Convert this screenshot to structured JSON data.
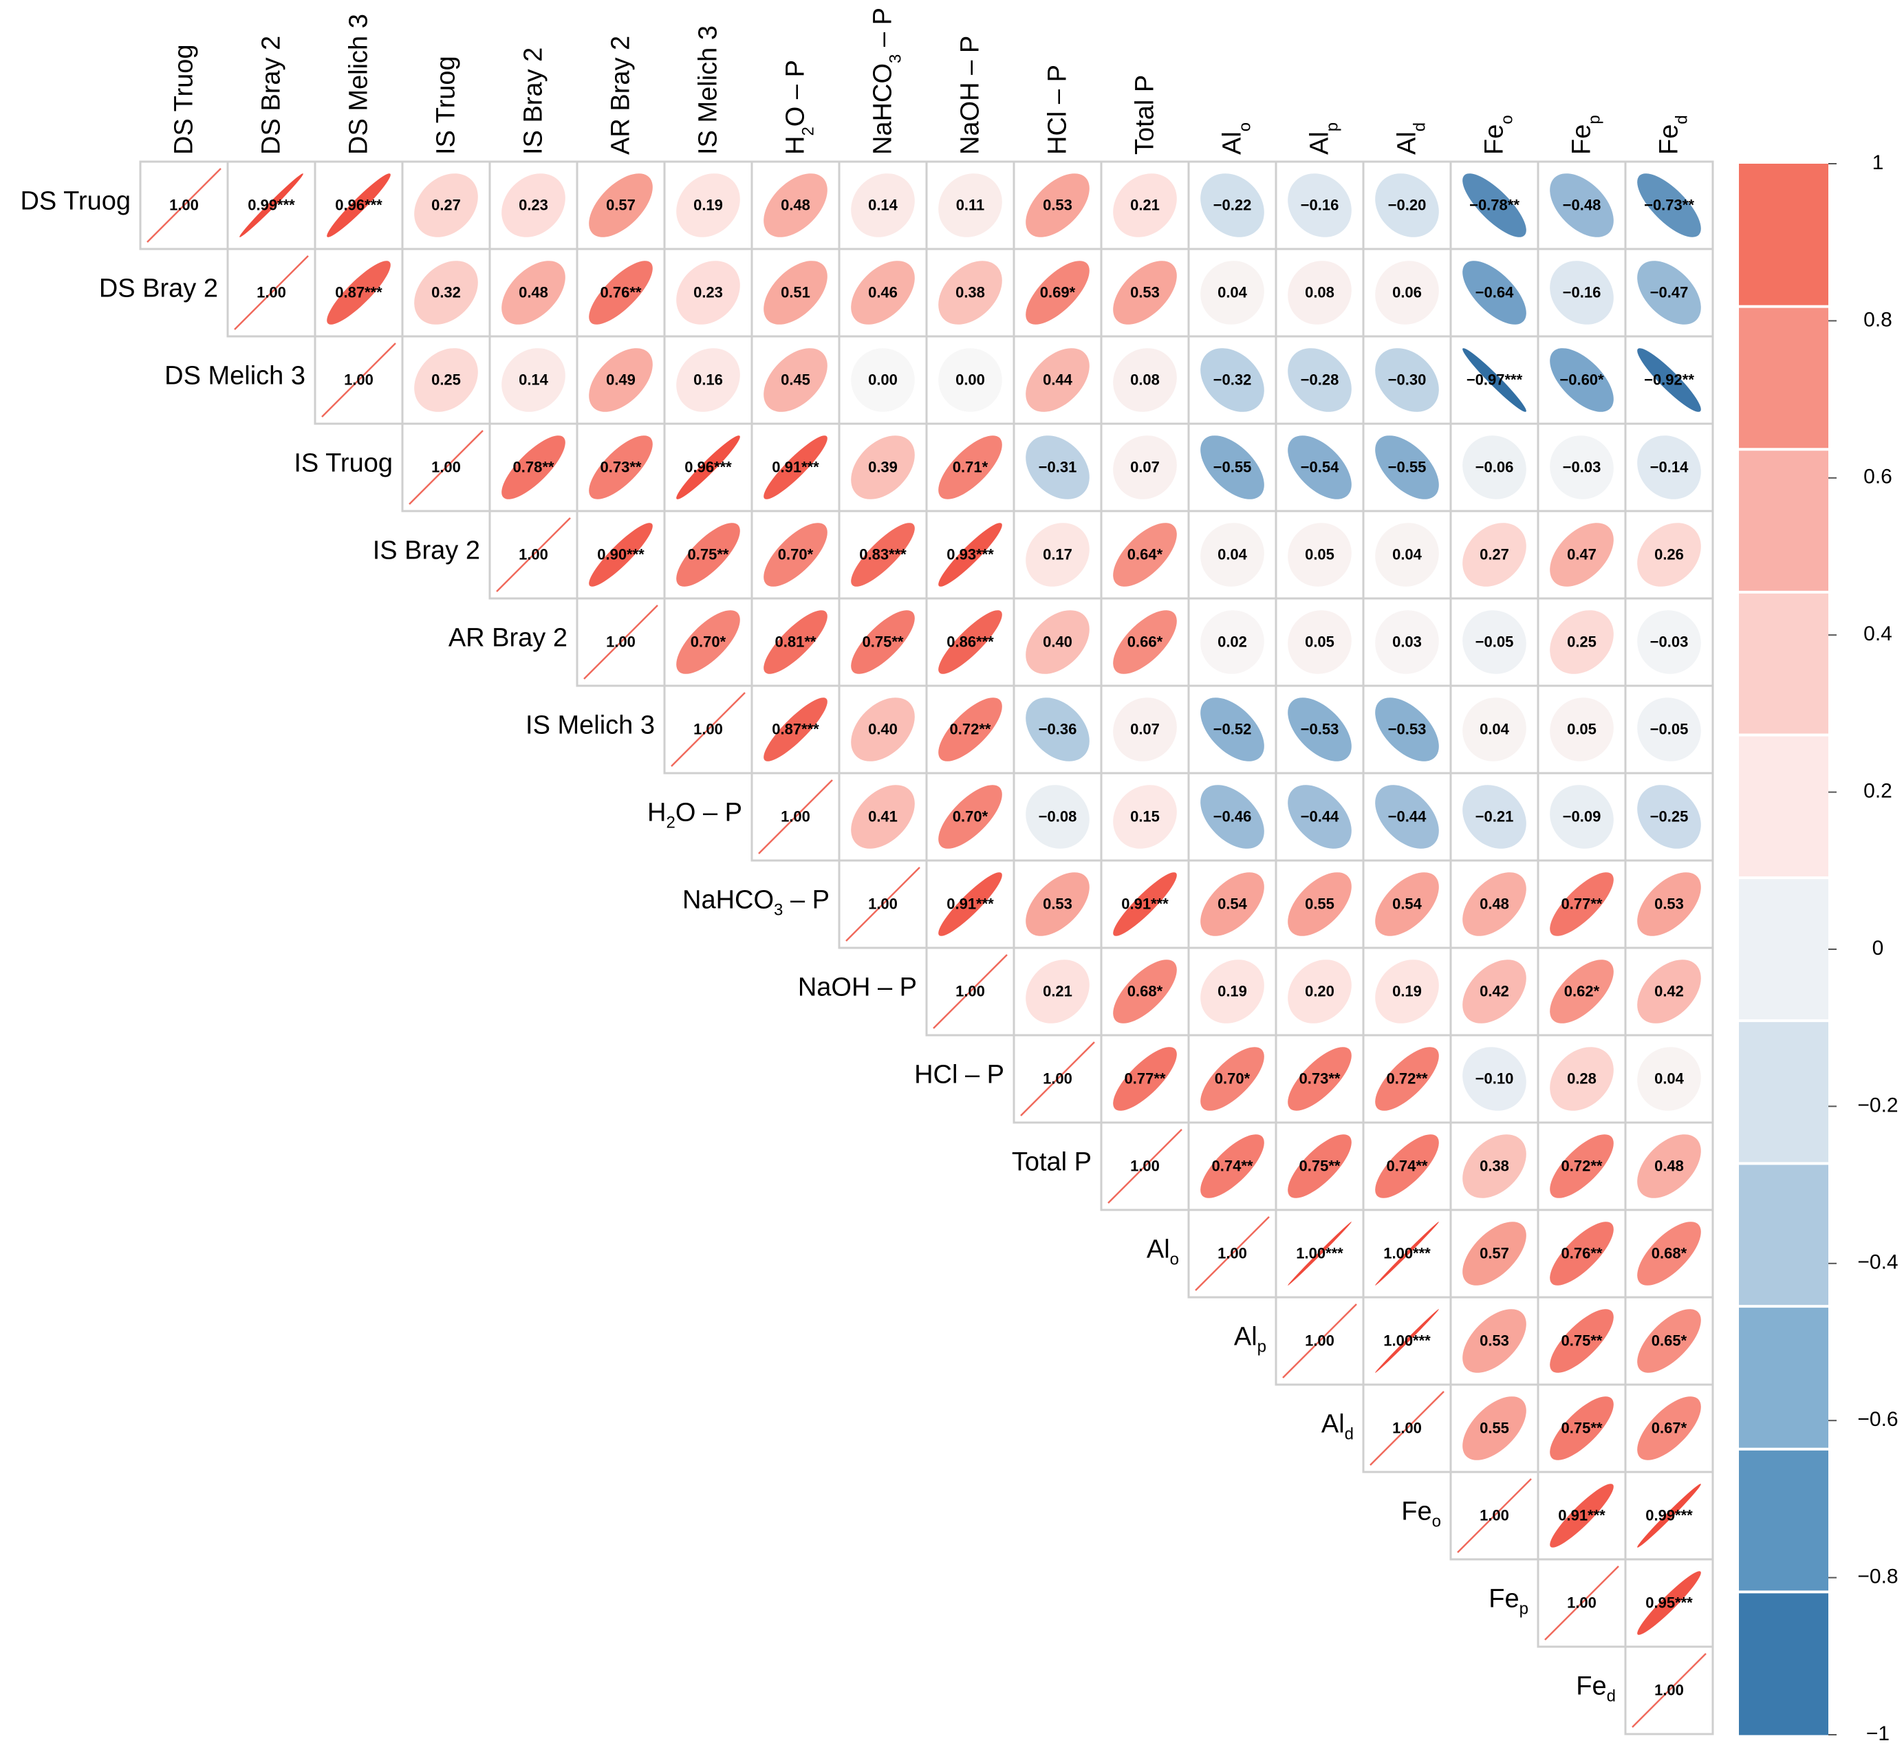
{
  "chart_data": {
    "type": "heatmap",
    "subtype": "correlogram-upper-ellipse",
    "variables": [
      {
        "name": "DS Truog"
      },
      {
        "name": "DS Bray 2"
      },
      {
        "name": "DS Melich 3"
      },
      {
        "name": "IS Truog"
      },
      {
        "name": "IS Bray 2"
      },
      {
        "name": "AR Bray 2"
      },
      {
        "name": "IS Melich 3"
      },
      {
        "name": "H",
        "sub": "2",
        "post": "O – P"
      },
      {
        "name": "NaHCO",
        "sub": "3",
        "post": " – P"
      },
      {
        "name": "NaOH – P"
      },
      {
        "name": "HCl – P"
      },
      {
        "name": "Total P"
      },
      {
        "name": "Al",
        "sub": "o"
      },
      {
        "name": "Al",
        "sub": "p"
      },
      {
        "name": "Al",
        "sub": "d"
      },
      {
        "name": "Fe",
        "sub": "o"
      },
      {
        "name": "Fe",
        "sub": "p"
      },
      {
        "name": "Fe",
        "sub": "d"
      }
    ],
    "cells": [
      [
        "1.00",
        "0.99***",
        "0.96***",
        "0.27",
        "0.23",
        "0.57",
        "0.19",
        "0.48",
        "0.14",
        "0.11",
        "0.53",
        "0.21",
        "−0.22",
        "−0.16",
        "−0.20",
        "−0.78**",
        "−0.48",
        "−0.73**"
      ],
      [
        "",
        "1.00",
        "0.87***",
        "0.32",
        "0.48",
        "0.76**",
        "0.23",
        "0.51",
        "0.46",
        "0.38",
        "0.69*",
        "0.53",
        "0.04",
        "0.08",
        "0.06",
        "−0.64",
        "−0.16",
        "−0.47"
      ],
      [
        "",
        "",
        "1.00",
        "0.25",
        "0.14",
        "0.49",
        "0.16",
        "0.45",
        "0.00",
        "0.00",
        "0.44",
        "0.08",
        "−0.32",
        "−0.28",
        "−0.30",
        "−0.97***",
        "−0.60*",
        "−0.92**"
      ],
      [
        "",
        "",
        "",
        "1.00",
        "0.78**",
        "0.73**",
        "0.96***",
        "0.91***",
        "0.39",
        "0.71*",
        "−0.31",
        "0.07",
        "−0.55",
        "−0.54",
        "−0.55",
        "−0.06",
        "−0.03",
        "−0.14"
      ],
      [
        "",
        "",
        "",
        "",
        "1.00",
        "0.90***",
        "0.75**",
        "0.70*",
        "0.83***",
        "0.93***",
        "0.17",
        "0.64*",
        "0.04",
        "0.05",
        "0.04",
        "0.27",
        "0.47",
        "0.26"
      ],
      [
        "",
        "",
        "",
        "",
        "",
        "1.00",
        "0.70*",
        "0.81**",
        "0.75**",
        "0.86***",
        "0.40",
        "0.66*",
        "0.02",
        "0.05",
        "0.03",
        "−0.05",
        "0.25",
        "−0.03"
      ],
      [
        "",
        "",
        "",
        "",
        "",
        "",
        "1.00",
        "0.87***",
        "0.40",
        "0.72**",
        "−0.36",
        "0.07",
        "−0.52",
        "−0.53",
        "−0.53",
        "0.04",
        "0.05",
        "−0.05"
      ],
      [
        "",
        "",
        "",
        "",
        "",
        "",
        "",
        "1.00",
        "0.41",
        "0.70*",
        "−0.08",
        "0.15",
        "−0.46",
        "−0.44",
        "−0.44",
        "−0.21",
        "−0.09",
        "−0.25"
      ],
      [
        "",
        "",
        "",
        "",
        "",
        "",
        "",
        "",
        "1.00",
        "0.91***",
        "0.53",
        "0.91***",
        "0.54",
        "0.55",
        "0.54",
        "0.48",
        "0.77**",
        "0.53"
      ],
      [
        "",
        "",
        "",
        "",
        "",
        "",
        "",
        "",
        "",
        "1.00",
        "0.21",
        "0.68*",
        "0.19",
        "0.20",
        "0.19",
        "0.42",
        "0.62*",
        "0.42"
      ],
      [
        "",
        "",
        "",
        "",
        "",
        "",
        "",
        "",
        "",
        "",
        "1.00",
        "0.77**",
        "0.70*",
        "0.73**",
        "0.72**",
        "−0.10",
        "0.28",
        "0.04"
      ],
      [
        "",
        "",
        "",
        "",
        "",
        "",
        "",
        "",
        "",
        "",
        "",
        "1.00",
        "0.74**",
        "0.75**",
        "0.74**",
        "0.38",
        "0.72**",
        "0.48"
      ],
      [
        "",
        "",
        "",
        "",
        "",
        "",
        "",
        "",
        "",
        "",
        "",
        "",
        "1.00",
        "1.00***",
        "1.00***",
        "0.57",
        "0.76**",
        "0.68*"
      ],
      [
        "",
        "",
        "",
        "",
        "",
        "",
        "",
        "",
        "",
        "",
        "",
        "",
        "",
        "1.00",
        "1.00***",
        "0.53",
        "0.75**",
        "0.65*"
      ],
      [
        "",
        "",
        "",
        "",
        "",
        "",
        "",
        "",
        "",
        "",
        "",
        "",
        "",
        "",
        "1.00",
        "0.55",
        "0.75**",
        "0.67*"
      ],
      [
        "",
        "",
        "",
        "",
        "",
        "",
        "",
        "",
        "",
        "",
        "",
        "",
        "",
        "",
        "",
        "1.00",
        "0.91***",
        "0.99***"
      ],
      [
        "",
        "",
        "",
        "",
        "",
        "",
        "",
        "",
        "",
        "",
        "",
        "",
        "",
        "",
        "",
        "",
        "1.00",
        "0.95***"
      ],
      [
        "",
        "",
        "",
        "",
        "",
        "",
        "",
        "",
        "",
        "",
        "",
        "",
        "",
        "",
        "",
        "",
        "",
        "1.00"
      ]
    ],
    "colorbar": {
      "ticks": [
        "1",
        "0.8",
        "0.6",
        "0.4",
        "0.2",
        "0",
        "−0.2",
        "−0.4",
        "−0.6",
        "−0.8",
        "−1"
      ],
      "range": [
        -1,
        1
      ],
      "colors": [
        "#3b7aad",
        "#5c95c0",
        "#84b0d1",
        "#aec9df",
        "#d5e2ed",
        "#edf1f5",
        "#fde8e7",
        "#fbcfca",
        "#f9b1a9",
        "#f69184",
        "#f37261"
      ]
    }
  }
}
